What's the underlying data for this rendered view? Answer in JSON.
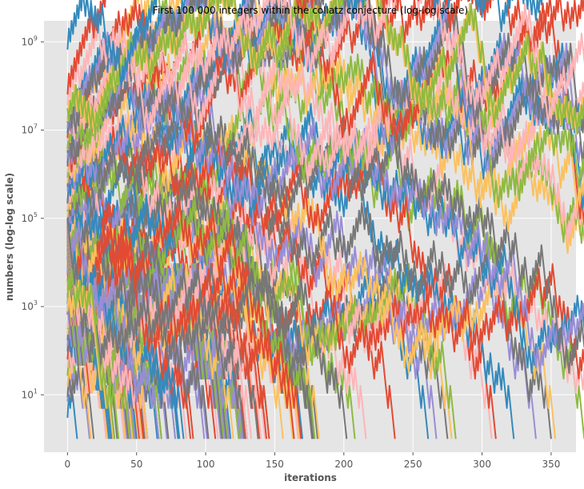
{
  "chart_data": {
    "type": "line",
    "title": "First 100 000 integers within the collatz conjecture (log-log scale)",
    "xlabel": "iterations",
    "ylabel": "numbers (log-log scale)",
    "y_scale": "log",
    "xlim": [
      -17,
      368
    ],
    "ylim": [
      0.5,
      3000000000
    ],
    "x_ticks": [
      0,
      50,
      100,
      150,
      200,
      250,
      300,
      350
    ],
    "x_tick_labels": [
      "0",
      "50",
      "100",
      "150",
      "200",
      "250",
      "300",
      "350"
    ],
    "y_ticks": [
      10,
      1000,
      100000,
      10000000,
      1000000000
    ],
    "y_tick_labels": [
      {
        "base": "10",
        "exp": "1"
      },
      {
        "base": "10",
        "exp": "3"
      },
      {
        "base": "10",
        "exp": "5"
      },
      {
        "base": "10",
        "exp": "7"
      },
      {
        "base": "10",
        "exp": "9"
      }
    ],
    "grid": true,
    "legend": "none",
    "background": "#e5e5e5",
    "grid_color": "#ffffff",
    "series_colors": [
      "#e24a33",
      "#348abd",
      "#988ed5",
      "#777777",
      "#fbc15e",
      "#8eba42",
      "#ffb5b8"
    ],
    "series_generation": {
      "sequence": "collatz",
      "start_values": [
        1,
        3,
        7,
        9,
        15,
        27,
        41,
        63,
        97,
        127,
        171,
        231,
        313,
        327,
        649,
        703,
        871,
        1161,
        2223,
        2463,
        2919,
        3711,
        6171,
        10971,
        13255,
        17647,
        23529,
        26623,
        34239,
        35655,
        52527,
        77031,
        106239,
        142587,
        156159,
        216367,
        230631,
        410011,
        511935,
        626331,
        837799,
        1117065,
        1501353,
        1723519,
        2298025,
        3064033,
        3542887,
        3732423,
        5649499,
        6649279,
        8400511,
        11200681,
        14934241,
        15733191,
        31466382,
        36791535,
        63728127,
        670617279,
        1000,
        2000,
        3000,
        4000,
        5000,
        6000,
        7000,
        8000,
        9000,
        10000,
        11000,
        12000,
        13000,
        14000,
        15000,
        16000,
        17000,
        18000,
        19000,
        20000,
        21000,
        22000,
        23000,
        24000,
        25000,
        26000,
        27000,
        28000,
        29000,
        30000,
        31000,
        32000,
        33000,
        34000,
        35000,
        36000,
        37000,
        38000,
        39000,
        40000,
        41000,
        42000,
        43000,
        44000,
        45000,
        46000,
        47000,
        48000,
        49000,
        50000,
        51000,
        52000,
        53000,
        54000,
        55000,
        56000,
        57000,
        58000,
        59000,
        60000,
        61000,
        62000,
        63000,
        64000,
        65000,
        66000,
        67000,
        68000,
        69000,
        70000,
        71000,
        72000,
        73000,
        74000,
        75000,
        76000,
        77000,
        78000,
        79000,
        80000,
        81000,
        82000,
        83000,
        84000,
        85000,
        86000,
        87000,
        88000,
        89000,
        90000,
        91000,
        92000,
        93000,
        94000,
        95000,
        96000,
        97000,
        98000,
        99000,
        100000,
        777,
        1555
      ]
    }
  }
}
